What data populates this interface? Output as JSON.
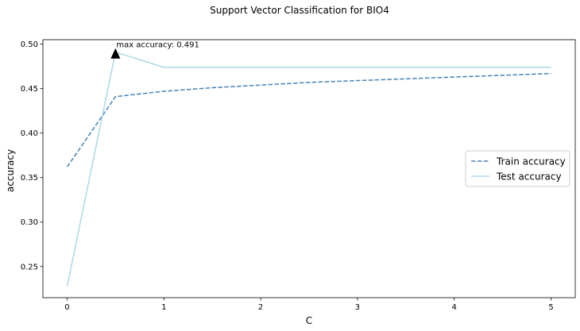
{
  "chart_data": {
    "type": "line",
    "title": "Support Vector Classification for BIO4",
    "xlabel": "C",
    "ylabel": "accuracy",
    "xlim": [
      -0.25,
      5.25
    ],
    "ylim": [
      0.215,
      0.505
    ],
    "xticks": [
      0,
      1,
      2,
      3,
      4,
      5
    ],
    "xtick_labels": [
      "0",
      "1",
      "2",
      "3",
      "4",
      "5"
    ],
    "yticks": [
      0.25,
      0.3,
      0.35,
      0.4,
      0.45,
      0.5
    ],
    "ytick_labels": [
      "0.25",
      "0.30",
      "0.35",
      "0.40",
      "0.45",
      "0.50"
    ],
    "grid": false,
    "legend_position": "center-right",
    "series": [
      {
        "name": "Train accuracy",
        "style": "dashed",
        "color": "#4682b4",
        "x": [
          0.001,
          0.5,
          1,
          1.5,
          2,
          2.5,
          3,
          3.5,
          4,
          4.5,
          5
        ],
        "y": [
          0.362,
          0.441,
          0.447,
          0.451,
          0.454,
          0.457,
          0.459,
          0.461,
          0.463,
          0.465,
          0.467
        ]
      },
      {
        "name": "Test accuracy",
        "style": "solid",
        "color": "#add8e6",
        "x": [
          0.001,
          0.5,
          1,
          1.5,
          2,
          2.5,
          3,
          3.5,
          4,
          4.5,
          5
        ],
        "y": [
          0.228,
          0.491,
          0.474,
          0.474,
          0.474,
          0.474,
          0.474,
          0.474,
          0.474,
          0.474,
          0.474
        ]
      }
    ],
    "annotation": {
      "text": "max accuracy: 0.491",
      "x": 0.5,
      "y": 0.491,
      "marker": "triangle",
      "marker_color": "#000000"
    }
  }
}
